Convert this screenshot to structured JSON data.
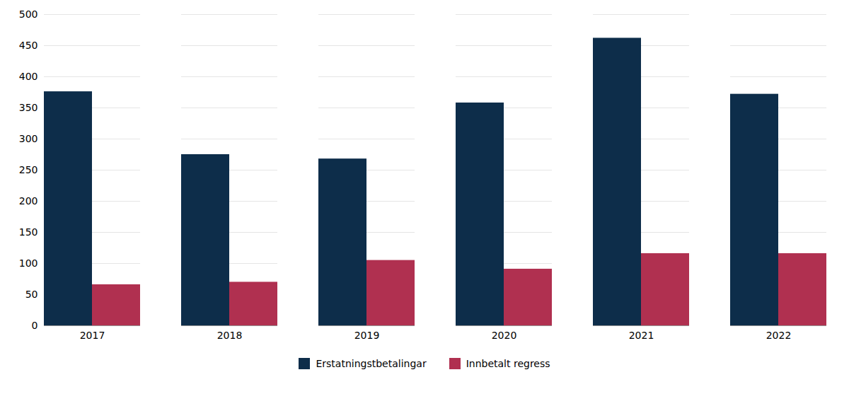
{
  "chart_data": {
    "type": "bar",
    "categories": [
      "2017",
      "2018",
      "2019",
      "2020",
      "2021",
      "2022"
    ],
    "series": [
      {
        "name": "Erstatningstbetalingar",
        "color": "#0d2d4a",
        "values": [
          376,
          275,
          268,
          358,
          462,
          372
        ]
      },
      {
        "name": "Innbetalt regress",
        "color": "#b03050",
        "values": [
          66,
          70,
          105,
          91,
          116,
          116
        ]
      }
    ],
    "ylim": [
      0,
      500
    ],
    "yticks": [
      0,
      50,
      100,
      150,
      200,
      250,
      300,
      350,
      400,
      450,
      500
    ],
    "grid": true,
    "legend": "bottom"
  }
}
